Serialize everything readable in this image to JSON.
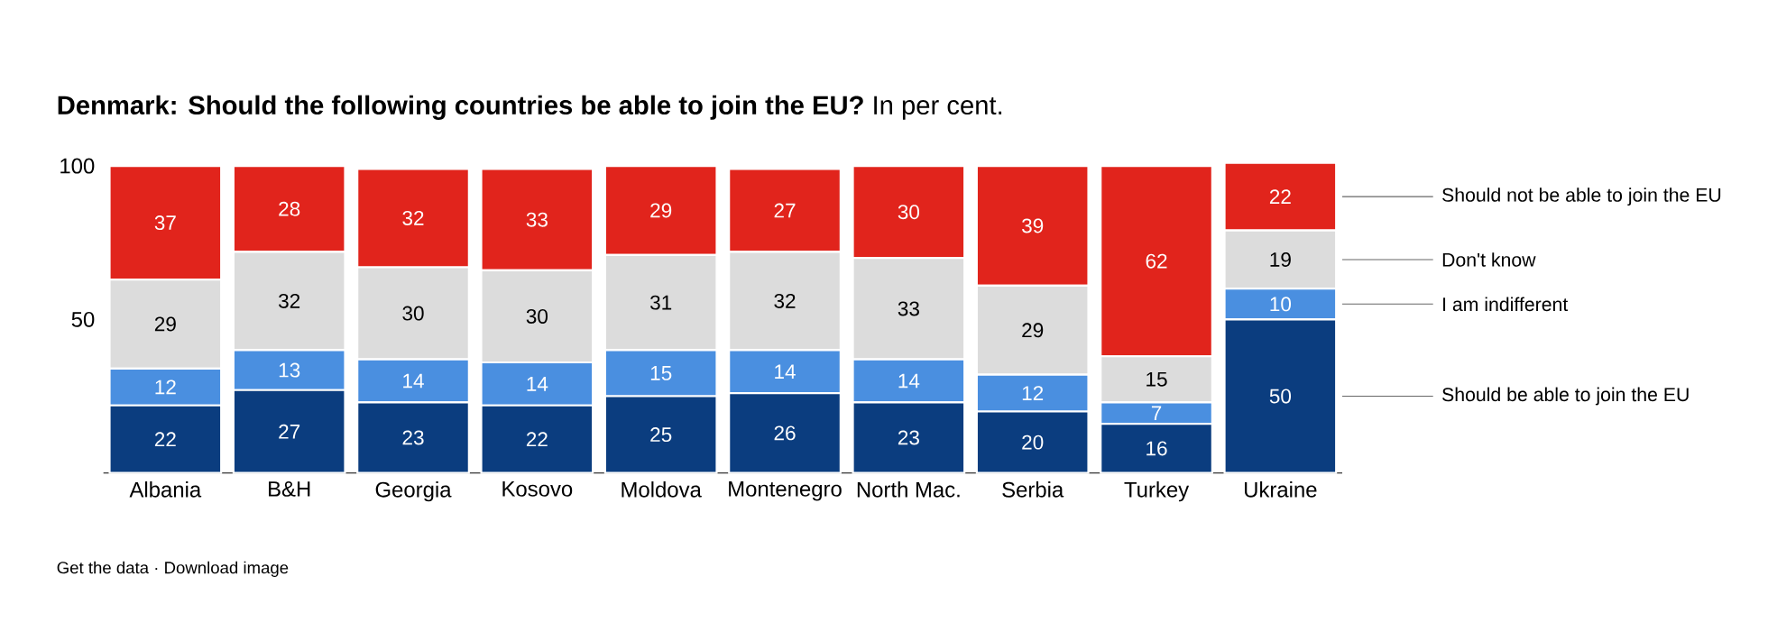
{
  "chart_data": {
    "type": "bar",
    "stacked": true,
    "data_labels": true,
    "title": "Denmark: Should the following countries be able to join the EU?",
    "subtitle": "In per cent.",
    "categories": [
      "Albania",
      "B&H",
      "Georgia",
      "Kosovo",
      "Moldova",
      "Montenegro",
      "North Mac.",
      "Serbia",
      "Turkey",
      "Ukraine"
    ],
    "series": [
      {
        "name": "Should be able to join the EU",
        "color": "#0b3d7f",
        "values": [
          22,
          27,
          23,
          22,
          25,
          26,
          23,
          20,
          16,
          50
        ]
      },
      {
        "name": "I am indifferent",
        "color": "#4a8fe0",
        "values": [
          12,
          13,
          14,
          14,
          15,
          14,
          14,
          12,
          7,
          10
        ]
      },
      {
        "name": "Don't know",
        "color": "#dcdcdc",
        "values": [
          29,
          32,
          30,
          30,
          31,
          32,
          33,
          29,
          15,
          19
        ]
      },
      {
        "name": "Should not be able to join the EU",
        "color": "#e1241c",
        "values": [
          37,
          28,
          32,
          33,
          29,
          27,
          30,
          39,
          62,
          22
        ]
      }
    ],
    "ylim": [
      0,
      101
    ],
    "yticks": [
      50,
      100
    ],
    "annotations": [
      "Get the data · Download image"
    ]
  }
}
